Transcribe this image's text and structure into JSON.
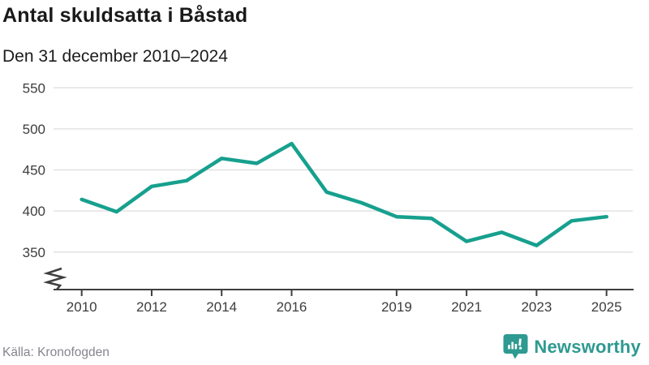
{
  "header": {
    "title": "Antal skuldsatta i Båstad",
    "subtitle": "Den 31 december 2010–2024"
  },
  "chart_data": {
    "type": "line",
    "title": "Antal skuldsatta i Båstad",
    "subtitle": "Den 31 december 2010–2024",
    "x": [
      2010,
      2011,
      2012,
      2013,
      2014,
      2015,
      2016,
      2017,
      2018,
      2019,
      2020,
      2021,
      2022,
      2023,
      2024,
      2025
    ],
    "series": [
      {
        "name": "Antal skuldsatta",
        "values": [
          414,
          399,
          430,
          437,
          464,
          458,
          482,
          423,
          410,
          393,
          391,
          363,
          374,
          358,
          388,
          393
        ]
      }
    ],
    "x_tick_labels": [
      "2010",
      "2012",
      "2014",
      "2016",
      "2019",
      "2021",
      "2023",
      "2025"
    ],
    "x_tick_years": [
      2010,
      2012,
      2014,
      2016,
      2019,
      2021,
      2023,
      2025
    ],
    "y_ticks": [
      350,
      400,
      450,
      500,
      550
    ],
    "ylim": [
      350,
      550
    ],
    "y_axis_break": true,
    "grid": "horizontal",
    "legend": "none",
    "line_color": "#17a08e",
    "axis_color": "#3f3f3f",
    "grid_color": "#e2e2e2",
    "tick_label_color": "#3d3d3d"
  },
  "footer": {
    "source": "Källa: Kronofogden",
    "brand": "Newsworthy",
    "brand_color": "#2e9a91"
  }
}
